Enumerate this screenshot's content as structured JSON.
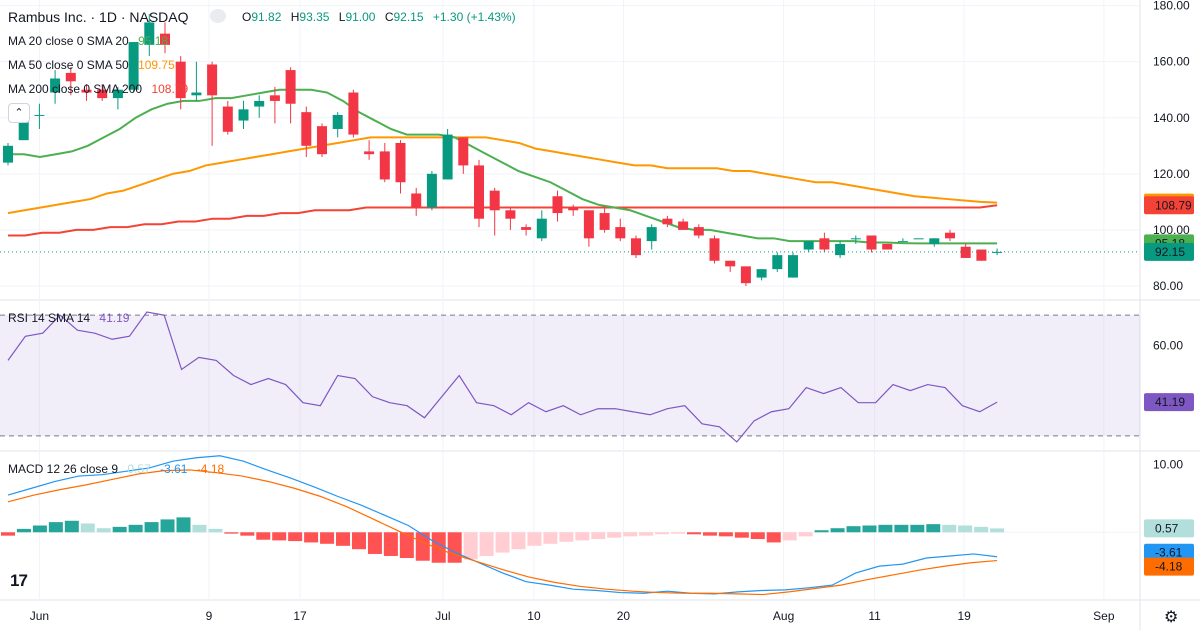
{
  "header": {
    "title": "Rambus Inc. · 1D · NASDAQ",
    "o_label": "O",
    "o_value": "91.82",
    "h_label": "H",
    "h_value": "93.35",
    "l_label": "L",
    "l_value": "91.00",
    "c_label": "C",
    "c_value": "92.15",
    "change": "+1.30 (+1.43%)"
  },
  "legend": {
    "ma20": {
      "label": "MA 20 close 0 SMA 20",
      "value": "95.18"
    },
    "ma50": {
      "label": "MA 50 close 0 SMA 50",
      "value": "109.75"
    },
    "ma200": {
      "label": "MA 200 close 0 SMA 200",
      "value": "108.79"
    },
    "rsi": {
      "label": "RSI 14 SMA 14",
      "value": "41.19"
    },
    "macd": {
      "label": "MACD 12 26 close 9",
      "hist": "0.57",
      "macd": "-3.61",
      "signal": "-4.18"
    }
  },
  "colors": {
    "up": "#089981",
    "down": "#f23645",
    "ma20": "#4caf50",
    "ma50": "#ff9800",
    "ma200": "#f44336",
    "rsi": "#7e57c2",
    "macd": "#2196f3",
    "signal": "#ff6d00",
    "hist_up_strong": "#26a69a",
    "hist_up_weak": "#b2dfdb",
    "hist_down_strong": "#ff5252",
    "hist_down_weak": "#ffcdd2"
  },
  "chart_data": [
    {
      "type": "candlestick",
      "title": "Rambus Inc. · 1D · NASDAQ",
      "x_ticks": [
        "Jun",
        "9",
        "17",
        "Jul",
        "10",
        "20",
        "Aug",
        "11",
        "19",
        "Sep"
      ],
      "y_ticks": [
        "180.00",
        "160.00",
        "140.00",
        "120.00",
        "100.00",
        "80.00"
      ],
      "ylim": [
        75,
        182
      ],
      "candles": [
        {
          "o": 124,
          "h": 131,
          "l": 123,
          "c": 130
        },
        {
          "o": 132,
          "h": 142,
          "l": 132,
          "c": 139
        },
        {
          "o": 141,
          "h": 145,
          "l": 136,
          "c": 141
        },
        {
          "o": 149,
          "h": 157,
          "l": 145,
          "c": 154
        },
        {
          "o": 156,
          "h": 158,
          "l": 148,
          "c": 153
        },
        {
          "o": 150,
          "h": 152,
          "l": 146,
          "c": 149
        },
        {
          "o": 150,
          "h": 152,
          "l": 146,
          "c": 147
        },
        {
          "o": 147,
          "h": 151,
          "l": 143,
          "c": 150
        },
        {
          "o": 150,
          "h": 167,
          "l": 149,
          "c": 167
        },
        {
          "o": 166,
          "h": 177,
          "l": 162,
          "c": 174
        },
        {
          "o": 170,
          "h": 174,
          "l": 163,
          "c": 166
        },
        {
          "o": 160,
          "h": 162,
          "l": 143,
          "c": 147
        },
        {
          "o": 148,
          "h": 160,
          "l": 146,
          "c": 149
        },
        {
          "o": 159,
          "h": 160,
          "l": 130,
          "c": 148
        },
        {
          "o": 144,
          "h": 146,
          "l": 134,
          "c": 135
        },
        {
          "o": 139,
          "h": 146,
          "l": 136,
          "c": 143
        },
        {
          "o": 144,
          "h": 148,
          "l": 140,
          "c": 146
        },
        {
          "o": 148,
          "h": 151,
          "l": 138,
          "c": 146
        },
        {
          "o": 157,
          "h": 158,
          "l": 138,
          "c": 145
        },
        {
          "o": 142,
          "h": 144,
          "l": 126,
          "c": 130
        },
        {
          "o": 137,
          "h": 138,
          "l": 126,
          "c": 127
        },
        {
          "o": 136,
          "h": 142,
          "l": 133,
          "c": 141
        },
        {
          "o": 149,
          "h": 150,
          "l": 133,
          "c": 134
        },
        {
          "o": 128,
          "h": 132,
          "l": 125,
          "c": 127
        },
        {
          "o": 128,
          "h": 131,
          "l": 117,
          "c": 118
        },
        {
          "o": 131,
          "h": 132,
          "l": 113,
          "c": 117
        },
        {
          "o": 113,
          "h": 115,
          "l": 105,
          "c": 108
        },
        {
          "o": 108,
          "h": 121,
          "l": 107,
          "c": 120
        },
        {
          "o": 118,
          "h": 136,
          "l": 118,
          "c": 134
        },
        {
          "o": 133,
          "h": 133,
          "l": 120,
          "c": 123
        },
        {
          "o": 123,
          "h": 125,
          "l": 101,
          "c": 104
        },
        {
          "o": 114,
          "h": 115,
          "l": 98,
          "c": 107
        },
        {
          "o": 107,
          "h": 108,
          "l": 100,
          "c": 104
        },
        {
          "o": 101,
          "h": 102,
          "l": 98,
          "c": 100
        },
        {
          "o": 97,
          "h": 107,
          "l": 96,
          "c": 104
        },
        {
          "o": 112,
          "h": 114,
          "l": 103,
          "c": 106
        },
        {
          "o": 108,
          "h": 109,
          "l": 105,
          "c": 107
        },
        {
          "o": 107,
          "h": 107,
          "l": 94,
          "c": 97
        },
        {
          "o": 106,
          "h": 108,
          "l": 99,
          "c": 100
        },
        {
          "o": 101,
          "h": 104,
          "l": 96,
          "c": 97
        },
        {
          "o": 97,
          "h": 98,
          "l": 90,
          "c": 91
        },
        {
          "o": 96,
          "h": 102,
          "l": 93,
          "c": 101
        },
        {
          "o": 104,
          "h": 105,
          "l": 101,
          "c": 102
        },
        {
          "o": 103,
          "h": 104,
          "l": 100,
          "c": 100
        },
        {
          "o": 101,
          "h": 102,
          "l": 97,
          "c": 98
        },
        {
          "o": 97,
          "h": 98,
          "l": 88,
          "c": 89
        },
        {
          "o": 89,
          "h": 89,
          "l": 85,
          "c": 87
        },
        {
          "o": 87,
          "h": 87,
          "l": 80,
          "c": 81
        },
        {
          "o": 83,
          "h": 86,
          "l": 82,
          "c": 86
        },
        {
          "o": 86,
          "h": 92,
          "l": 85,
          "c": 91
        },
        {
          "o": 83,
          "h": 92,
          "l": 83,
          "c": 91
        },
        {
          "o": 93,
          "h": 96,
          "l": 92,
          "c": 96
        },
        {
          "o": 97,
          "h": 99,
          "l": 92,
          "c": 93
        },
        {
          "o": 91,
          "h": 96,
          "l": 90,
          "c": 95
        },
        {
          "o": 97,
          "h": 98,
          "l": 95,
          "c": 97
        },
        {
          "o": 98,
          "h": 98,
          "l": 92,
          "c": 93
        },
        {
          "o": 95,
          "h": 95,
          "l": 93,
          "c": 93
        },
        {
          "o": 96,
          "h": 97,
          "l": 96,
          "c": 96
        },
        {
          "o": 97,
          "h": 97,
          "l": 97,
          "c": 97
        },
        {
          "o": 95,
          "h": 97,
          "l": 94,
          "c": 97
        },
        {
          "o": 99,
          "h": 100,
          "l": 96,
          "c": 97
        },
        {
          "o": 94,
          "h": 95,
          "l": 90,
          "c": 90
        },
        {
          "o": 93,
          "h": 93,
          "l": 89,
          "c": 89
        },
        {
          "o": 91.82,
          "h": 93.35,
          "l": 91.0,
          "c": 92.15
        }
      ],
      "ma20": [
        127,
        127,
        126,
        127,
        128,
        130,
        133,
        136,
        140,
        143,
        145,
        146,
        146,
        147,
        147,
        148,
        149,
        150,
        150,
        150,
        149,
        146,
        142,
        139,
        136,
        134,
        134,
        134,
        133,
        130,
        127,
        124,
        121,
        119,
        117,
        114,
        111,
        109,
        108,
        107,
        105,
        103,
        101,
        100,
        100,
        99,
        98,
        97,
        97,
        96,
        96,
        96,
        96,
        96,
        95.5,
        95.5,
        95.3,
        95.2,
        95.2,
        95.2,
        95.2,
        95.2,
        95.18
      ],
      "ma50": [
        106,
        107,
        108,
        109,
        110,
        111,
        113,
        114,
        116,
        118,
        120,
        121,
        123,
        124,
        125,
        126,
        127,
        128,
        129,
        130,
        131,
        132,
        133,
        133,
        133,
        133,
        133,
        133,
        133,
        133,
        132,
        131,
        129,
        128,
        127,
        126,
        125,
        124,
        123,
        123,
        122,
        122,
        122,
        122,
        121,
        121,
        120,
        119,
        118,
        117,
        117,
        116,
        115,
        114,
        113,
        112,
        111.5,
        111,
        110.5,
        110,
        109.75
      ],
      "ma200": [
        98,
        98,
        99,
        99,
        100,
        100,
        101,
        101,
        102,
        102,
        103,
        103,
        104,
        104,
        105,
        105,
        106,
        106,
        107,
        107,
        107,
        108,
        108,
        108,
        108,
        108,
        108,
        108,
        108,
        108,
        108,
        108,
        108,
        108,
        108,
        108,
        108,
        108,
        108,
        108,
        108,
        108,
        108,
        108,
        108,
        108,
        108,
        108,
        108,
        108,
        108,
        108,
        108,
        108,
        108,
        108,
        108,
        108,
        108.79
      ],
      "last_price": 92.15,
      "price_labels": [
        "109.75",
        "108.79",
        "95.18",
        "92.15"
      ]
    },
    {
      "type": "line",
      "title": "RSI 14 SMA 14",
      "y_ticks": [
        "60.00"
      ],
      "ylim": [
        25,
        75
      ],
      "band": [
        30,
        70
      ],
      "values": [
        55,
        63,
        64,
        70,
        65,
        64,
        62,
        63,
        71,
        70,
        52,
        56,
        55,
        50,
        47,
        49,
        47,
        41,
        40,
        50,
        49,
        43,
        41,
        40,
        36,
        43,
        50,
        41,
        40,
        37,
        41,
        38,
        40,
        37,
        39,
        39,
        38,
        37,
        39,
        40,
        34,
        33,
        28,
        35,
        38,
        39,
        46,
        44,
        46,
        41,
        41,
        47,
        45,
        47,
        46,
        40,
        38,
        41.19
      ],
      "last_value": "41.19"
    },
    {
      "type": "line",
      "title": "MACD 12 26 close 9",
      "y_ticks": [
        "10.00"
      ],
      "ylim": [
        -10,
        12
      ],
      "macd": [
        5.5,
        6.5,
        7.5,
        8.3,
        8.5,
        9,
        9.5,
        10.5,
        11,
        11.3,
        10.5,
        9.2,
        8,
        6.7,
        5.3,
        4,
        2.5,
        1,
        -1.2,
        -3,
        -4.5,
        -6,
        -7.3,
        -7.8,
        -8.4,
        -8.6,
        -8.9,
        -9,
        -8.7,
        -9,
        -9.1,
        -8.8,
        -8.6,
        -8.5,
        -8.2,
        -7.8,
        -6,
        -5,
        -4.7,
        -3.8,
        -3.5,
        -3.2,
        -3.61
      ],
      "signal": [
        4.5,
        5.5,
        6.3,
        7,
        7.8,
        8.6,
        9.1,
        9.2,
        8.8,
        8.3,
        7.5,
        6.5,
        5.3,
        3.8,
        2,
        0.2,
        -1.6,
        -3.1,
        -4.3,
        -5.5,
        -6.6,
        -7.4,
        -8,
        -8.4,
        -8.7,
        -8.9,
        -9,
        -9,
        -9.1,
        -9.2,
        -8.8,
        -8.3,
        -7.8,
        -7,
        -6.3,
        -5.6,
        -5,
        -4.5,
        -4.18
      ],
      "histogram": [
        -0.5,
        0.5,
        1,
        1.5,
        1.7,
        1.3,
        0.6,
        0.8,
        1.1,
        1.5,
        1.9,
        2.2,
        1.1,
        0.5,
        -0.2,
        -0.5,
        -1.1,
        -1.2,
        -1.3,
        -1.5,
        -1.7,
        -2,
        -2.5,
        -3.2,
        -3.5,
        -3.8,
        -4.2,
        -4.5,
        -4.5,
        -4,
        -3.5,
        -3,
        -2.5,
        -2,
        -1.7,
        -1.4,
        -1.2,
        -1,
        -0.8,
        -0.6,
        -0.5,
        -0.3,
        -0.2,
        -0.3,
        -0.5,
        -0.6,
        -0.8,
        -1,
        -1.5,
        -1.2,
        -0.6,
        0.3,
        0.6,
        0.9,
        1,
        1.1,
        1.1,
        1.1,
        1.2,
        1.1,
        1,
        0.8,
        0.57
      ],
      "last_values": [
        "0.57",
        "-3.61",
        "-4.18"
      ]
    }
  ]
}
